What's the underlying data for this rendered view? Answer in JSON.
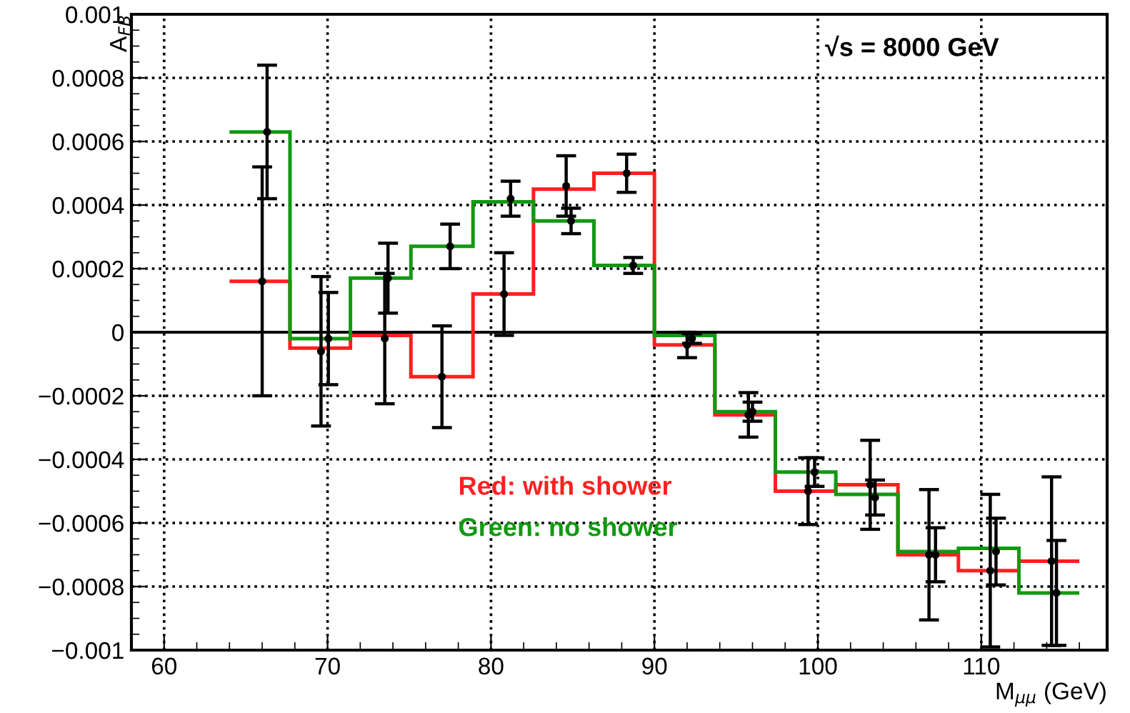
{
  "chart_data": {
    "type": "histogram",
    "xlabel": "M$_{μμ}$ (GeV)",
    "ylabel": "A$_{FB}$",
    "annotations": [
      "√s = 8000 GeV"
    ],
    "bins": [
      64,
      67.7,
      71.4,
      75.1,
      78.9,
      82.6,
      86.3,
      90,
      93.7,
      97.4,
      101.1,
      104.9,
      108.6,
      112.3,
      116
    ],
    "series": [
      {
        "name": "Red: with shower",
        "color": "#ff2020",
        "values": [
          0.00016,
          -5e-05,
          -1e-05,
          -0.00014,
          0.00012,
          0.00045,
          0.0005,
          -4e-05,
          -0.00026,
          -0.0005,
          -0.00048,
          -0.0007,
          -0.00075,
          -0.00072
        ]
      },
      {
        "name": "Green: no shower",
        "color": "#119911",
        "values": [
          0.00063,
          -2e-05,
          0.00017,
          0.00027,
          0.00041,
          0.00035,
          0.00021,
          -1e-05,
          -0.00025,
          -0.00044,
          -0.00051,
          -0.00069,
          -0.00068,
          -0.00082
        ]
      },
      {
        "type": "scatter",
        "color": "#000000",
        "marker": "circle",
        "x": [
          66.0,
          69.6,
          73.5,
          77.0,
          80.8,
          84.6,
          88.3,
          92.0,
          95.75,
          99.4,
          103.2,
          106.8,
          110.55,
          114.3
        ],
        "values": [
          0.00016,
          -6e-05,
          -2e-05,
          -0.00014,
          0.00012,
          0.00046,
          0.0005,
          -4e-05,
          -0.00026,
          -0.0005,
          -0.00048,
          -0.0007,
          -0.00075,
          -0.00072
        ],
        "errors": [
          0.00036,
          0.000235,
          0.000205,
          0.00016,
          0.00013,
          9.5e-05,
          6e-05,
          4e-05,
          7e-05,
          0.000105,
          0.00014,
          0.000205,
          0.00024,
          0.000265
        ]
      },
      {
        "type": "scatter",
        "color": "#000000",
        "marker": "circle",
        "x": [
          66.3,
          70.05,
          73.7,
          77.5,
          81.2,
          84.9,
          88.7,
          92.3,
          96.0,
          99.8,
          103.5,
          107.2,
          110.9,
          114.6
        ],
        "values": [
          0.00063,
          -2e-05,
          0.00017,
          0.00027,
          0.00042,
          0.00035,
          0.00021,
          -2e-05,
          -0.00025,
          -0.00044,
          -0.00052,
          -0.0007,
          -0.00069,
          -0.00082
        ],
        "errors": [
          0.00021,
          0.000145,
          0.00011,
          7e-05,
          5.5e-05,
          4e-05,
          2.5e-05,
          1.5e-05,
          3e-05,
          4.5e-05,
          5.5e-05,
          8.5e-05,
          0.000105,
          0.000165
        ]
      }
    ],
    "ref_lines": [
      {
        "axis": "y",
        "value": 0,
        "color": "#000000",
        "line_style": "solid"
      }
    ],
    "xlim": [
      58,
      117.7
    ],
    "ylim": [
      -0.001,
      0.001
    ],
    "xticks": [
      60,
      70,
      80,
      90,
      100,
      110
    ],
    "yticks": [
      {
        "value": -0.001,
        "label": "−0.001"
      },
      {
        "value": -0.0008,
        "label": "−0.0008"
      },
      {
        "value": -0.0006,
        "label": "−0.0006"
      },
      {
        "value": -0.0004,
        "label": "−0.0004"
      },
      {
        "value": -0.0002,
        "label": "−0.0002"
      },
      0,
      {
        "value": 0.0002,
        "label": "0.0002"
      },
      {
        "value": 0.0004,
        "label": "0.0004"
      },
      {
        "value": 0.0006,
        "label": "0.0006"
      },
      {
        "value": 0.0008,
        "label": "0.0008"
      },
      {
        "value": 0.001,
        "label": "0.001"
      }
    ],
    "grid": true,
    "line_style": "dotted"
  }
}
